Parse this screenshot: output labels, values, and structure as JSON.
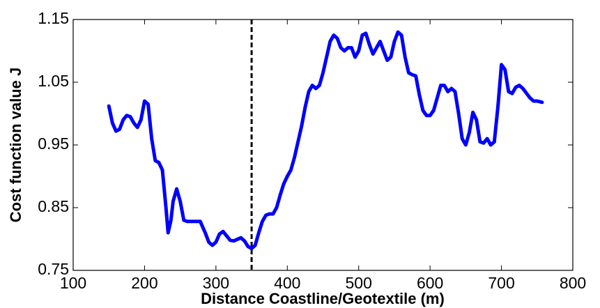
{
  "chart_data": {
    "type": "line",
    "x_label": "Distance Coastline/Geotextile (m)",
    "y_label": "Cost function value J",
    "xlim": [
      100,
      800
    ],
    "ylim": [
      0.75,
      1.15
    ],
    "xticks": [
      100,
      200,
      300,
      400,
      500,
      600,
      700,
      800
    ],
    "yticks": [
      0.75,
      0.85,
      0.95,
      1.05,
      1.15
    ],
    "vlines": [
      350
    ],
    "x": [
      150,
      155,
      160,
      165,
      170,
      175,
      180,
      185,
      190,
      195,
      200,
      205,
      210,
      215,
      220,
      225,
      230,
      233,
      237,
      240,
      245,
      250,
      255,
      260,
      270,
      278,
      285,
      290,
      295,
      300,
      305,
      310,
      315,
      320,
      325,
      335,
      340,
      345,
      350,
      355,
      360,
      365,
      370,
      375,
      380,
      385,
      390,
      395,
      400,
      405,
      410,
      415,
      420,
      425,
      430,
      435,
      440,
      445,
      450,
      455,
      460,
      465,
      470,
      475,
      480,
      485,
      490,
      495,
      500,
      505,
      510,
      515,
      520,
      525,
      530,
      535,
      540,
      545,
      550,
      555,
      560,
      565,
      570,
      575,
      580,
      585,
      590,
      595,
      600,
      605,
      610,
      615,
      620,
      625,
      630,
      635,
      640,
      645,
      650,
      655,
      660,
      665,
      670,
      675,
      680,
      685,
      690,
      695,
      700,
      705,
      710,
      715,
      720,
      725,
      730,
      740,
      745,
      750,
      757
    ],
    "series": [
      {
        "color": "#0000ff",
        "values": [
          1.012,
          0.985,
          0.972,
          0.975,
          0.99,
          0.997,
          0.995,
          0.985,
          0.978,
          0.99,
          1.02,
          1.015,
          0.96,
          0.925,
          0.922,
          0.91,
          0.85,
          0.81,
          0.83,
          0.86,
          0.88,
          0.86,
          0.83,
          0.828,
          0.828,
          0.828,
          0.81,
          0.795,
          0.79,
          0.795,
          0.808,
          0.812,
          0.805,
          0.798,
          0.797,
          0.802,
          0.797,
          0.788,
          0.785,
          0.79,
          0.81,
          0.828,
          0.838,
          0.84,
          0.84,
          0.85,
          0.87,
          0.888,
          0.9,
          0.91,
          0.93,
          0.955,
          0.98,
          1.01,
          1.035,
          1.045,
          1.04,
          1.045,
          1.065,
          1.09,
          1.115,
          1.125,
          1.12,
          1.105,
          1.1,
          1.105,
          1.105,
          1.09,
          1.1,
          1.125,
          1.128,
          1.11,
          1.095,
          1.105,
          1.115,
          1.1,
          1.085,
          1.09,
          1.115,
          1.13,
          1.125,
          1.09,
          1.065,
          1.062,
          1.06,
          1.03,
          1.005,
          0.997,
          0.997,
          1.005,
          1.025,
          1.045,
          1.045,
          1.035,
          1.04,
          1.035,
          1.0,
          0.96,
          0.95,
          0.97,
          1.002,
          0.99,
          0.955,
          0.953,
          0.96,
          0.95,
          0.955,
          1.01,
          1.078,
          1.07,
          1.035,
          1.032,
          1.042,
          1.045,
          1.04,
          1.025,
          1.02,
          1.02,
          1.018
        ]
      }
    ]
  }
}
